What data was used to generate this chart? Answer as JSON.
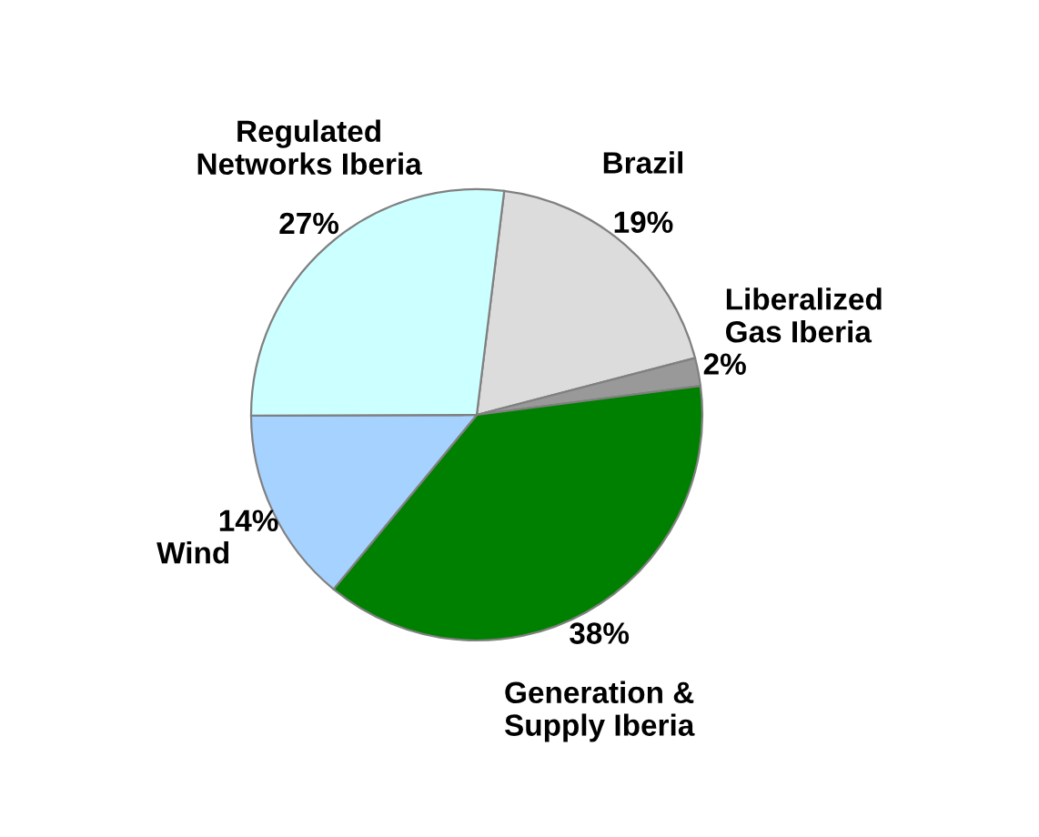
{
  "chart_data": {
    "type": "pie",
    "categories": [
      "Brazil",
      "Liberalized\nGas Iberia",
      "Generation &\nSupply Iberia",
      "Wind",
      "Regulated\nNetworks Iberia"
    ],
    "values": [
      19,
      2,
      38,
      14,
      27
    ],
    "colors": [
      "#dcdcdc",
      "#999999",
      "#008000",
      "#a6d2ff",
      "#ccffff"
    ],
    "value_labels": [
      "19%",
      "2%",
      "38%",
      "14%",
      "27%"
    ]
  }
}
